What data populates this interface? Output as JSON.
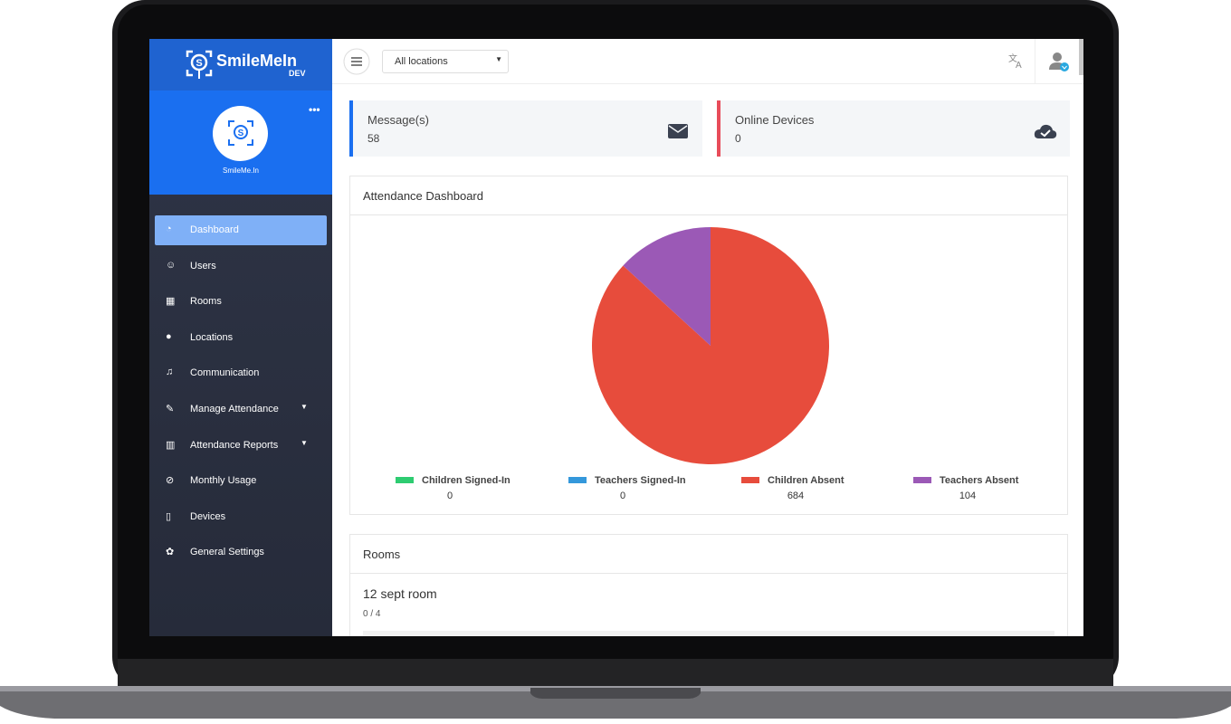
{
  "brand": {
    "name": "SmileMeIn",
    "tag": "DEV"
  },
  "profile": {
    "name": "SmileMe.In"
  },
  "menu": [
    "Dashboard",
    "Users",
    "Rooms",
    "Locations",
    "Communication",
    "Manage Attendance",
    "Attendance Reports",
    "Monthly Usage",
    "Devices",
    "General Settings"
  ],
  "topbar": {
    "location_select": "All locations"
  },
  "cards": [
    {
      "label": "Message(s)",
      "value": 58
    },
    {
      "label": "Online Devices",
      "value": 0
    }
  ],
  "attendance": {
    "title": "Attendance Dashboard",
    "chart": {
      "type": "pie",
      "categories": [
        "Children Signed-In",
        "Teachers Signed-In",
        "Children Absent",
        "Teachers Absent"
      ],
      "values": [
        0,
        0,
        684,
        104
      ],
      "colors": [
        "#2ecc71",
        "#3498db",
        "#e74c3c",
        "#9b59b6"
      ]
    }
  },
  "rooms": {
    "title": "Rooms",
    "items": [
      {
        "name": "12 sept room",
        "count": "0 / 4"
      }
    ]
  }
}
